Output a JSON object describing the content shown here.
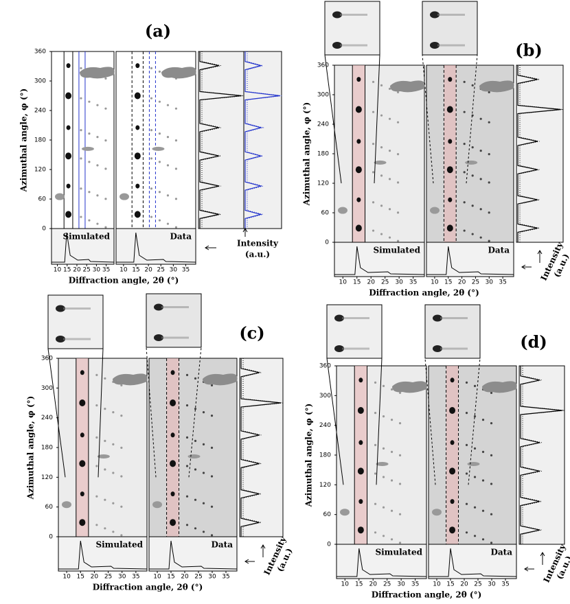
{
  "panels": [
    {
      "label": "(a)"
    },
    {
      "label": "(b)"
    },
    {
      "label": "(c)"
    },
    {
      "label": "(d)"
    }
  ],
  "labels": {
    "y_axis": "Azimuthal angle, φ (°)",
    "x_axis": "Diffraction angle, 2θ (°)",
    "simulated": "Simulated",
    "data": "Data",
    "intensity": "Intensity",
    "units": "(a.u.)"
  },
  "axes": {
    "ylim": [
      0,
      360
    ],
    "yticks": [
      0,
      60,
      120,
      180,
      240,
      300,
      360
    ],
    "xlim": [
      7,
      39
    ],
    "xticks": [
      10,
      15,
      20,
      25,
      30,
      35
    ]
  }
}
